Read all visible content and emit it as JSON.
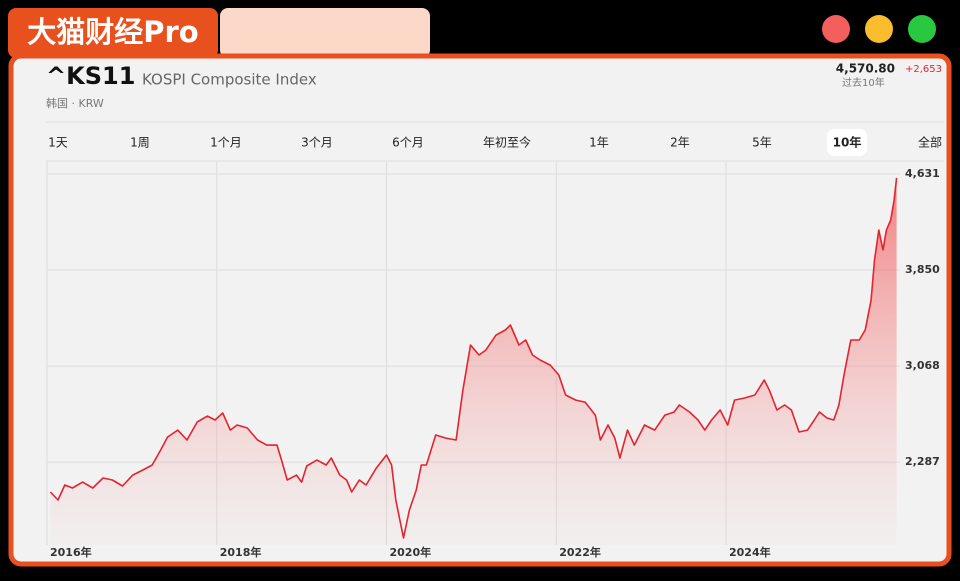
{
  "app": {
    "brand": "大猫财经Pro"
  },
  "quote": {
    "symbol": "^KS11",
    "name": "KOSPI Composite Index",
    "market": "韩国 · KRW",
    "price": "4,570.80",
    "change": "+2,653",
    "period": "过去10年"
  },
  "ranges": {
    "options": [
      "1天",
      "1周",
      "1个月",
      "3个月",
      "6个月",
      "年初至今",
      "1年",
      "2年",
      "5年",
      "10年",
      "全部"
    ],
    "selected_index": 9
  },
  "chart_data": {
    "type": "line",
    "color": "#e5232f",
    "fill": true,
    "grid": true,
    "xlim": [
      2016,
      2026.05
    ],
    "ylim": [
      1613,
      4729
    ],
    "xticks": [
      {
        "value": 2016,
        "label": "2016年"
      },
      {
        "value": 2018,
        "label": "2018年"
      },
      {
        "value": 2020,
        "label": "2020年"
      },
      {
        "value": 2022,
        "label": "2022年"
      },
      {
        "value": 2024,
        "label": "2024年"
      }
    ],
    "yticks": [
      {
        "value": 2287,
        "label": "2,287"
      },
      {
        "value": 3068,
        "label": "3,068"
      },
      {
        "value": 3850,
        "label": "3,850"
      },
      {
        "value": 4631,
        "label": "4,631"
      }
    ],
    "x": [
      2016.04,
      2016.13,
      2016.21,
      2016.3,
      2016.42,
      2016.54,
      2016.66,
      2016.77,
      2016.89,
      2017.01,
      2017.13,
      2017.24,
      2017.34,
      2017.42,
      2017.54,
      2017.65,
      2017.77,
      2017.89,
      2017.98,
      2018.07,
      2018.16,
      2018.24,
      2018.36,
      2018.48,
      2018.59,
      2018.71,
      2018.77,
      2018.83,
      2018.94,
      2019.0,
      2019.06,
      2019.18,
      2019.29,
      2019.35,
      2019.45,
      2019.53,
      2019.59,
      2019.68,
      2019.76,
      2019.88,
      2020.0,
      2020.06,
      2020.11,
      2020.2,
      2020.27,
      2020.35,
      2020.41,
      2020.47,
      2020.58,
      2020.7,
      2020.82,
      2020.9,
      2020.99,
      2021.09,
      2021.17,
      2021.29,
      2021.4,
      2021.46,
      2021.56,
      2021.64,
      2021.72,
      2021.81,
      2021.93,
      2022.03,
      2022.11,
      2022.23,
      2022.34,
      2022.46,
      2022.52,
      2022.61,
      2022.69,
      2022.75,
      2022.84,
      2022.92,
      2023.04,
      2023.16,
      2023.28,
      2023.39,
      2023.45,
      2023.57,
      2023.67,
      2023.75,
      2023.83,
      2023.93,
      2024.02,
      2024.1,
      2024.22,
      2024.34,
      2024.45,
      2024.51,
      2024.6,
      2024.69,
      2024.77,
      2024.86,
      2024.96,
      2025.04,
      2025.1,
      2025.19,
      2025.27,
      2025.33,
      2025.39,
      2025.47,
      2025.57,
      2025.64,
      2025.71,
      2025.75,
      2025.8,
      2025.85,
      2025.89,
      2025.94,
      2025.98,
      2026.01
    ],
    "values": [
      2044,
      1979,
      2101,
      2077,
      2125,
      2077,
      2158,
      2142,
      2093,
      2182,
      2223,
      2264,
      2386,
      2491,
      2548,
      2467,
      2614,
      2662,
      2630,
      2687,
      2548,
      2589,
      2565,
      2467,
      2426,
      2426,
      2288,
      2142,
      2182,
      2125,
      2256,
      2304,
      2264,
      2321,
      2182,
      2142,
      2044,
      2142,
      2101,
      2239,
      2345,
      2264,
      1979,
      1670,
      1898,
      2060,
      2264,
      2264,
      2508,
      2483,
      2467,
      2874,
      3240,
      3159,
      3199,
      3321,
      3362,
      3403,
      3240,
      3281,
      3159,
      3118,
      3077,
      2996,
      2833,
      2792,
      2776,
      2670,
      2467,
      2589,
      2483,
      2321,
      2548,
      2426,
      2589,
      2548,
      2670,
      2695,
      2752,
      2695,
      2630,
      2548,
      2630,
      2711,
      2589,
      2792,
      2809,
      2833,
      2955,
      2874,
      2711,
      2752,
      2711,
      2532,
      2548,
      2630,
      2695,
      2646,
      2630,
      2752,
      2996,
      3281,
      3281,
      3362,
      3606,
      3931,
      4175,
      4013,
      4175,
      4257,
      4419,
      4600
    ]
  }
}
